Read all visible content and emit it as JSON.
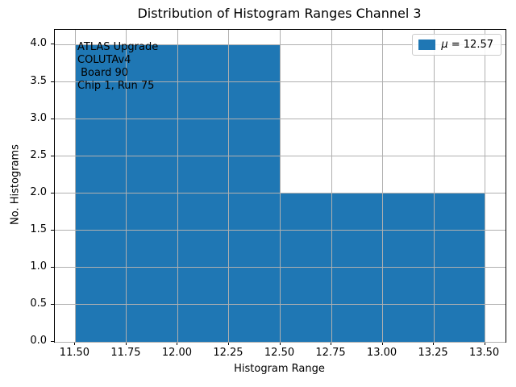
{
  "chart_data": {
    "type": "bar",
    "subtype": "histogram",
    "title": "Distribution of Histogram Ranges Channel 3",
    "xlabel": "Histogram Range",
    "ylabel": "No. Histograms",
    "bin_edges": [
      11.5,
      12.5,
      13.5
    ],
    "counts": [
      4,
      2
    ],
    "xlim": [
      11.4,
      13.6
    ],
    "ylim": [
      0,
      4.2
    ],
    "xticks": [
      11.5,
      11.75,
      12.0,
      12.25,
      12.5,
      12.75,
      13.0,
      13.25,
      13.5
    ],
    "xtick_labels": [
      "11.50",
      "11.75",
      "12.00",
      "12.25",
      "12.50",
      "12.75",
      "13.00",
      "13.25",
      "13.50"
    ],
    "yticks": [
      0,
      0.5,
      1.0,
      1.5,
      2.0,
      2.5,
      3.0,
      3.5,
      4.0
    ],
    "ytick_labels": [
      "0.0",
      "0.5",
      "1.0",
      "1.5",
      "2.0",
      "2.5",
      "3.0",
      "3.5",
      "4.0"
    ],
    "grid": true,
    "grid_color": "#b0b0b0",
    "bar_color": "#1f77b4",
    "legend": {
      "position": "upper right",
      "swatch_color": "#1f77b4",
      "symbol": "μ",
      "value_text": " = 12.57",
      "full_label": "μ = 12.57"
    },
    "annotation": {
      "lines": [
        "ATLAS Upgrade",
        "COLUTAv4",
        " Board 90",
        "Chip 1, Run 75"
      ]
    }
  }
}
